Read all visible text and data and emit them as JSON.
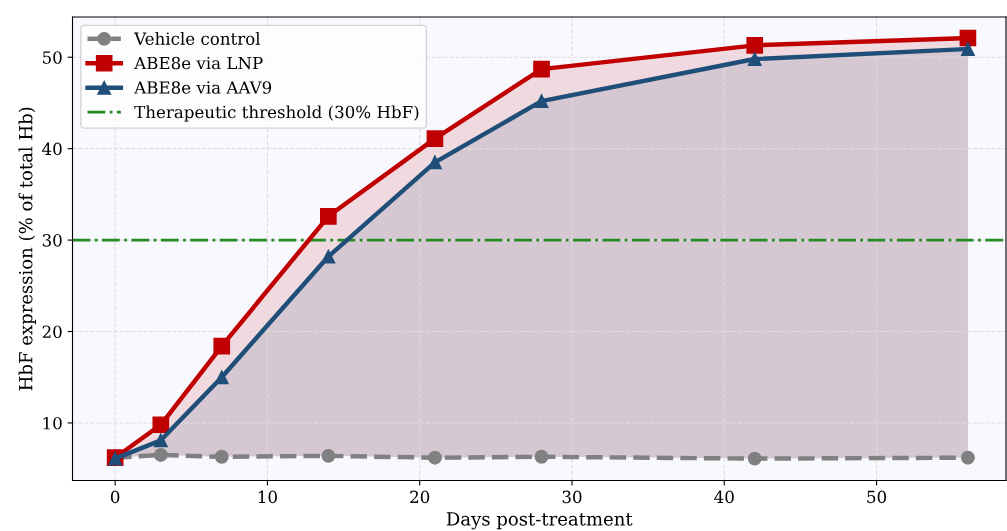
{
  "chart_data": {
    "type": "line",
    "xlabel": "Days post-treatment",
    "ylabel": "HbF expression (% of total Hb)",
    "x": [
      0,
      3,
      7,
      14,
      21,
      28,
      42,
      56
    ],
    "series": [
      {
        "name": "Vehicle control",
        "color": "#808080",
        "marker": "circle",
        "line_style": "dashed",
        "values": [
          6.2,
          6.5,
          6.3,
          6.4,
          6.2,
          6.3,
          6.1,
          6.2
        ]
      },
      {
        "name": "ABE8e via LNP",
        "color": "#c00000",
        "marker": "square",
        "line_style": "solid",
        "values": [
          6.2,
          9.8,
          18.4,
          32.6,
          41.1,
          48.7,
          51.3,
          52.1
        ],
        "lower": [
          6.2,
          6.5,
          6.3,
          6.4,
          6.2,
          6.3,
          6.1,
          6.2
        ],
        "upper": [
          6.2,
          9.8,
          18.4,
          32.6,
          41.1,
          48.7,
          51.3,
          52.1
        ]
      },
      {
        "name": "ABE8e via AAV9",
        "color": "#1f4e79",
        "marker": "triangle",
        "line_style": "solid",
        "values": [
          6.1,
          8.1,
          15.0,
          28.2,
          38.5,
          45.2,
          49.8,
          50.9
        ],
        "lower": [
          6.2,
          6.5,
          6.3,
          6.4,
          6.2,
          6.3,
          6.1,
          6.2
        ],
        "upper": [
          6.1,
          8.1,
          15.0,
          28.2,
          38.5,
          45.2,
          49.8,
          50.9
        ]
      }
    ],
    "ref_lines": [
      {
        "axis": "y",
        "value": 30,
        "label": "Therapeutic threshold (30% HbF)",
        "color": "#228b22",
        "line_style": "dashdot"
      }
    ],
    "xlim": [
      -2.8,
      58.5
    ],
    "ylim": [
      3.7,
      54.4
    ],
    "xticks": [
      0,
      10,
      20,
      30,
      40,
      50
    ],
    "yticks": [
      10,
      20,
      30,
      40,
      50
    ],
    "grid": true,
    "legend": "top left"
  }
}
